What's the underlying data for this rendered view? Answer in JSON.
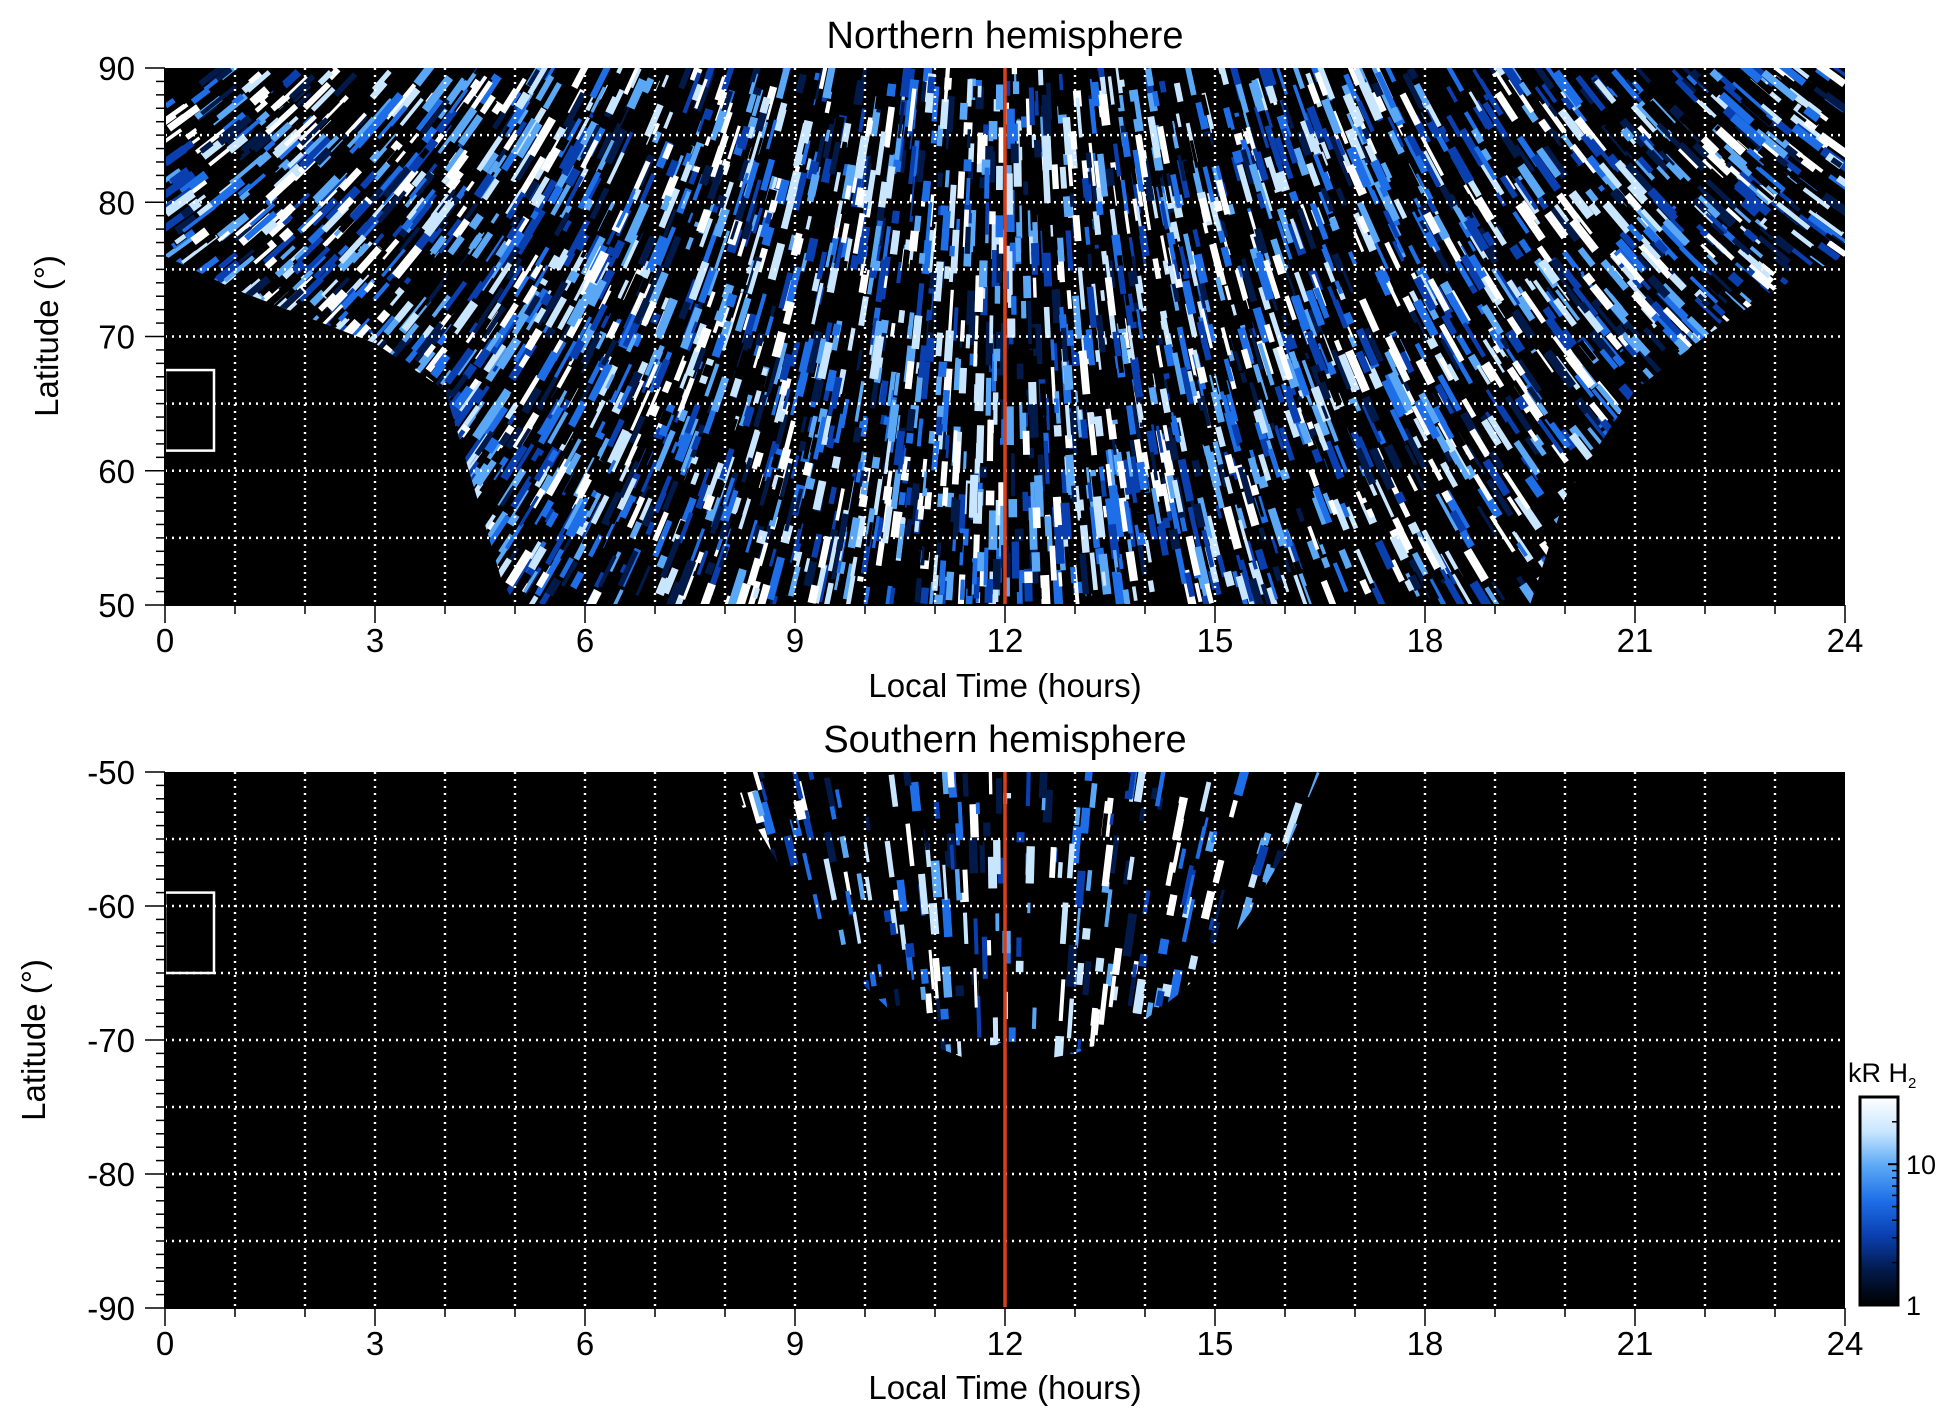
{
  "chart_data": [
    {
      "type": "heatmap",
      "title": "Northern hemisphere",
      "xlabel": "Local Time (hours)",
      "ylabel": "Latitude (°)",
      "xlim": [
        0,
        24
      ],
      "ylim": [
        50,
        90
      ],
      "xticks": [
        0,
        3,
        6,
        9,
        12,
        15,
        18,
        21,
        24
      ],
      "xtick_labels": [
        "0",
        "3",
        "6",
        "9",
        "12",
        "15",
        "18",
        "21",
        "24"
      ],
      "yticks": [
        50,
        60,
        70,
        80,
        90
      ],
      "ytick_labels": [
        "50",
        "60",
        "70",
        "80",
        "90"
      ],
      "x_minor_step": 1,
      "y_minor_step": 1,
      "grid": true,
      "grid_x": [
        1,
        2,
        3,
        4,
        5,
        6,
        7,
        8,
        9,
        10,
        11,
        12,
        13,
        14,
        15,
        16,
        17,
        18,
        19,
        20,
        21,
        22,
        23
      ],
      "grid_y": [
        55,
        60,
        65,
        70,
        75,
        80,
        85
      ],
      "reference_line_x": 12,
      "reference_line_color": "#d8401c",
      "reference_box": {
        "x": [
          0,
          0.7
        ],
        "y": [
          61.5,
          67.5
        ]
      },
      "coverage_boundary": {
        "lt": [
          0,
          1,
          2,
          3,
          4,
          4.8,
          5,
          6,
          7,
          8,
          9,
          10,
          11,
          12,
          13,
          14,
          15,
          16,
          17,
          18,
          19,
          19.5,
          20,
          21,
          22,
          23,
          24
        ],
        "lat": [
          76,
          73.5,
          71.5,
          69.5,
          66,
          52,
          50,
          50,
          50,
          50,
          50,
          50,
          50,
          50,
          50,
          50,
          50,
          50,
          50,
          50,
          50,
          50,
          58,
          66,
          70,
          73.5,
          76
        ]
      }
    },
    {
      "type": "heatmap",
      "title": "Southern hemisphere",
      "xlabel": "Local Time (hours)",
      "ylabel": "Latitude (°)",
      "xlim": [
        0,
        24
      ],
      "ylim": [
        -90,
        -50
      ],
      "xticks": [
        0,
        3,
        6,
        9,
        12,
        15,
        18,
        21,
        24
      ],
      "xtick_labels": [
        "0",
        "3",
        "6",
        "9",
        "12",
        "15",
        "18",
        "21",
        "24"
      ],
      "yticks": [
        -90,
        -80,
        -70,
        -60,
        -50
      ],
      "ytick_labels": [
        "-90",
        "-80",
        "-70",
        "-60",
        "-50"
      ],
      "x_minor_step": 1,
      "y_minor_step": 1,
      "grid": true,
      "grid_x": [
        1,
        2,
        3,
        4,
        5,
        6,
        7,
        8,
        9,
        10,
        11,
        12,
        13,
        14,
        15,
        16,
        17,
        18,
        19,
        20,
        21,
        22,
        23
      ],
      "grid_y": [
        -85,
        -80,
        -75,
        -70,
        -65,
        -60,
        -55
      ],
      "reference_line_x": 12,
      "reference_line_color": "#d8401c",
      "reference_box": {
        "x": [
          0,
          0.7
        ],
        "y": [
          -65,
          -59
        ]
      },
      "coverage_boundary": {
        "lt": [
          7.9,
          8.5,
          9,
          9.5,
          10,
          10.5,
          11,
          11.5,
          12,
          12.5,
          13,
          13.5,
          14,
          14.5,
          15,
          15.5,
          16,
          16.5
        ],
        "lat": [
          -50,
          -54.5,
          -59,
          -62.5,
          -66,
          -68.5,
          -70.5,
          -71.5,
          -70,
          -71.5,
          -71,
          -70,
          -68.5,
          -66.5,
          -64,
          -60.5,
          -56,
          -50
        ]
      }
    }
  ],
  "colorbar": {
    "label_prefix": "kR H",
    "label_subscript": "2",
    "scale": "log",
    "range": [
      1,
      30
    ],
    "ticks": [
      1,
      10
    ],
    "tick_labels": [
      "1",
      "10"
    ],
    "colors": [
      "#000000",
      "#021a4a",
      "#0a3fb0",
      "#1e6ee8",
      "#5aa8f5",
      "#c8e6ff",
      "#ffffff"
    ]
  }
}
